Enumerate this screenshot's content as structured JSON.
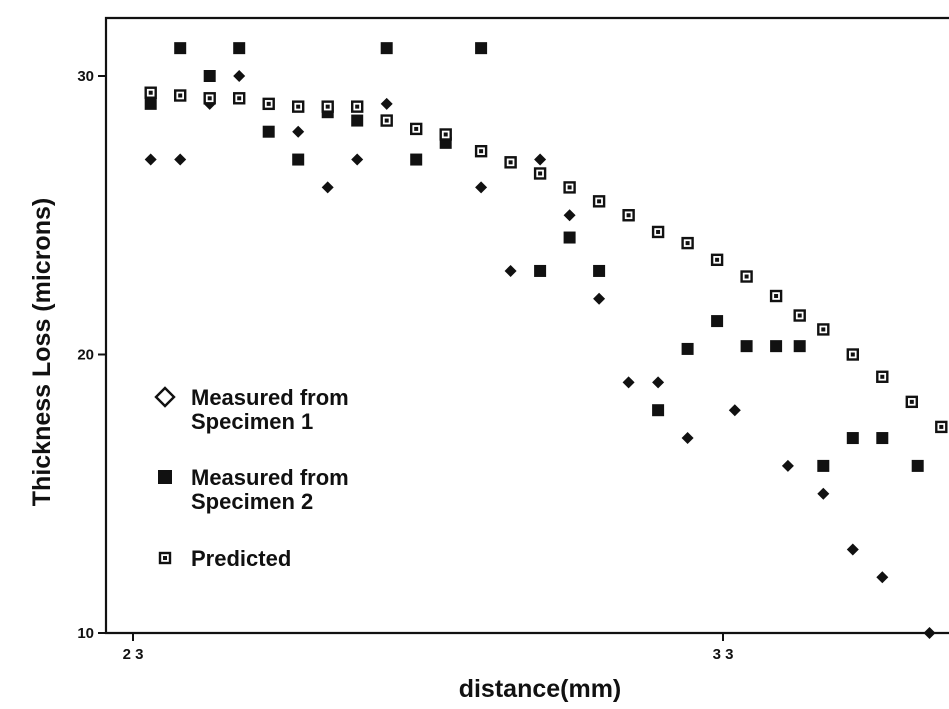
{
  "chart_data": {
    "type": "scatter",
    "title": "",
    "xlabel": "distance(mm)",
    "ylabel": "Thickness Loss (microns)",
    "xlim": [
      23,
      37
    ],
    "ylim": [
      10,
      32
    ],
    "xticks": [
      23,
      33
    ],
    "xtick_labels": [
      "2 3",
      "3 3"
    ],
    "yticks": [
      10,
      20,
      30
    ],
    "ytick_labels": [
      "10",
      "20",
      "30"
    ],
    "grid": false,
    "legend_position": "lower-left",
    "series": [
      {
        "name": "Measured from Specimen 1",
        "marker": "diamond",
        "legend_lines": [
          "Measured from",
          "Specimen 1"
        ],
        "x": [
          23.3,
          23.8,
          24.3,
          24.8,
          25.8,
          26.3,
          26.8,
          27.3,
          28.9,
          29.4,
          29.9,
          30.4,
          30.9,
          31.4,
          31.9,
          32.4,
          33.2,
          34.1,
          34.7,
          35.2,
          35.7,
          36.5
        ],
        "y": [
          27.0,
          27.0,
          29.0,
          30.0,
          28.0,
          26.0,
          27.0,
          29.0,
          26.0,
          23.0,
          27.0,
          25.0,
          22.0,
          19.0,
          19.0,
          17.0,
          18.0,
          16.0,
          15.0,
          13.0,
          12.0,
          10.0
        ]
      },
      {
        "name": "Measured from Specimen 2",
        "marker": "square",
        "legend_lines": [
          "Measured from",
          "Specimen 2"
        ],
        "x": [
          23.3,
          23.8,
          24.3,
          24.8,
          25.3,
          25.8,
          26.3,
          26.8,
          27.3,
          27.8,
          28.3,
          28.9,
          29.4,
          29.9,
          30.4,
          30.9,
          31.4,
          31.9,
          32.4,
          32.9,
          33.4,
          33.9,
          34.3,
          34.7,
          35.2,
          35.7,
          36.3
        ],
        "y": [
          29.0,
          31.0,
          30.0,
          31.0,
          28.0,
          27.0,
          28.7,
          28.4,
          31.0,
          27.0,
          27.6,
          31.0,
          26.9,
          23.0,
          24.2,
          23.0,
          25.0,
          18.0,
          20.2,
          21.2,
          20.3,
          20.3,
          20.3,
          16.0,
          17.0,
          17.0,
          16.0
        ]
      },
      {
        "name": "Predicted",
        "marker": "dotted-square",
        "legend_lines": [
          "Predicted"
        ],
        "x": [
          23.3,
          23.8,
          24.3,
          24.8,
          25.3,
          25.8,
          26.3,
          26.8,
          27.3,
          27.8,
          28.3,
          28.9,
          29.4,
          29.9,
          30.4,
          30.9,
          31.4,
          31.9,
          32.4,
          32.9,
          33.4,
          33.9,
          34.3,
          34.7,
          35.2,
          35.7,
          36.2,
          36.7
        ],
        "y": [
          29.4,
          29.3,
          29.2,
          29.2,
          29.0,
          28.9,
          28.9,
          28.9,
          28.4,
          28.1,
          27.9,
          27.3,
          26.9,
          26.5,
          26.0,
          25.5,
          25.0,
          24.4,
          24.0,
          23.4,
          22.8,
          22.1,
          21.4,
          20.9,
          20.0,
          19.2,
          18.3,
          17.4
        ]
      }
    ]
  }
}
